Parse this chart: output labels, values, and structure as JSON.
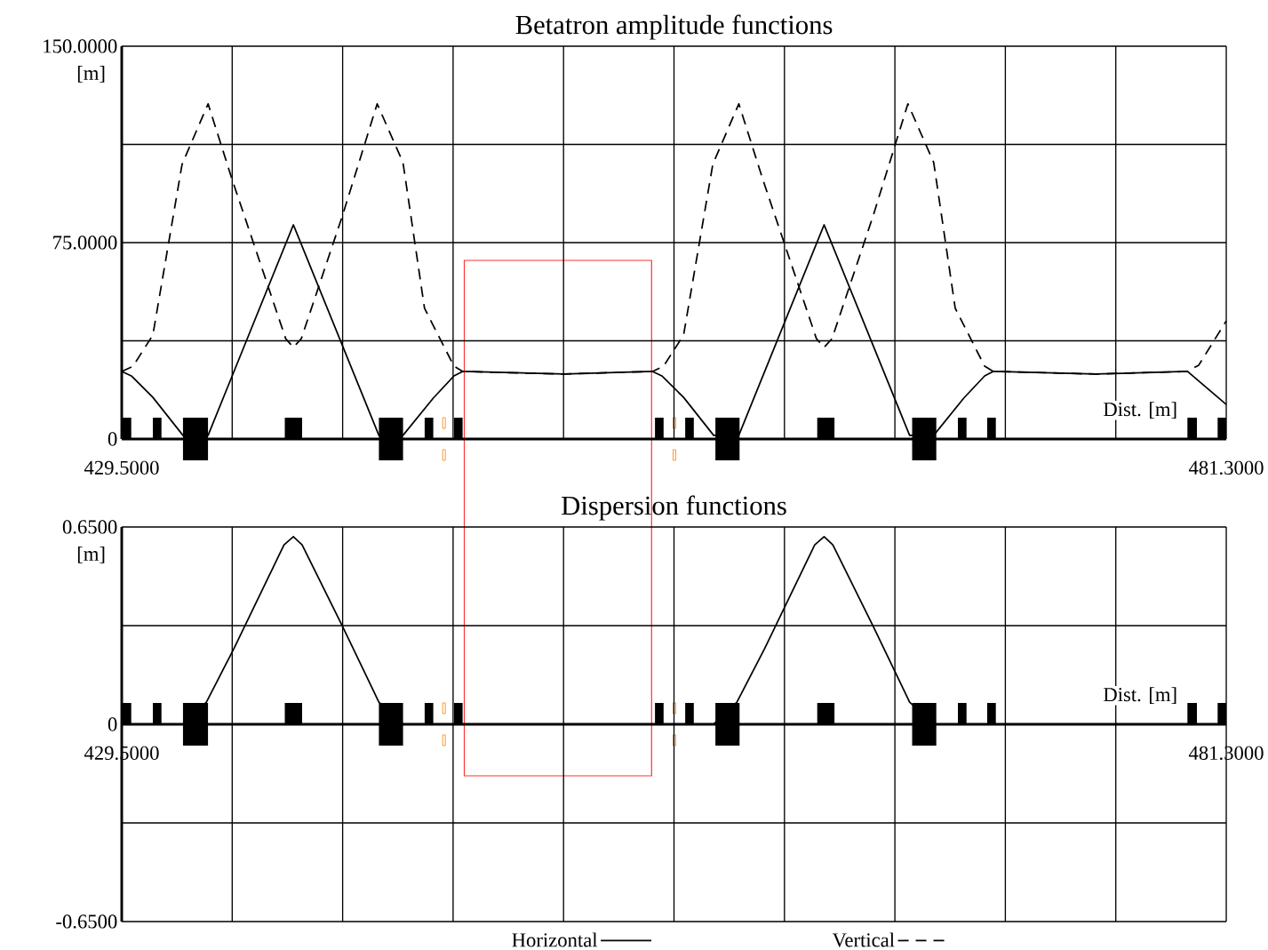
{
  "chart_data": [
    {
      "type": "line",
      "title": "Betatron amplitude functions",
      "xlabel": "Dist. [m]",
      "ylabel": "[m]",
      "xlim": [
        429.5,
        481.3
      ],
      "ylim": [
        0,
        150
      ],
      "xticks": [
        {
          "value": 429.5,
          "label": "429.5000"
        },
        {
          "value": 434.68,
          "label": null
        },
        {
          "value": 439.86,
          "label": null
        },
        {
          "value": 445.04,
          "label": null
        },
        {
          "value": 450.22,
          "label": null
        },
        {
          "value": 455.4,
          "label": null
        },
        {
          "value": 460.58,
          "label": null
        },
        {
          "value": 465.76,
          "label": null
        },
        {
          "value": 470.94,
          "label": null
        },
        {
          "value": 476.12,
          "label": null
        },
        {
          "value": 481.3,
          "label": "481.3000"
        }
      ],
      "yticks": [
        0,
        {
          "value": 37.5,
          "label": null
        },
        {
          "value": 75,
          "label": "75.0000"
        },
        {
          "value": 112.5,
          "label": null
        },
        {
          "value": 150,
          "label": "150.0000"
        }
      ],
      "grid": true,
      "legend": "bottom",
      "series": [
        {
          "name": "Horizontal",
          "color": "#000000",
          "line_style": "solid",
          "x": [
            429.5,
            429.95,
            430.96,
            432.37,
            433.55,
            437.55,
            441.56,
            442.69,
            444.11,
            445.08,
            445.49,
            450.26,
            454.39,
            454.83,
            455.85,
            457.26,
            458.44,
            462.44,
            466.45,
            467.58,
            468.99,
            469.97,
            470.37,
            475.15,
            479.48,
            481.3
          ],
          "values": [
            25.8,
            24.1,
            15.9,
            1.4,
            1.4,
            81.8,
            1.4,
            1.4,
            15.6,
            24.1,
            25.8,
            24.8,
            25.8,
            24.1,
            15.9,
            1.4,
            1.4,
            81.8,
            1.4,
            1.4,
            15.6,
            24.1,
            25.8,
            24.8,
            25.8,
            13.2
          ]
        },
        {
          "name": "Vertical",
          "color": "#000000",
          "line_style": "dashed",
          "x": [
            429.5,
            430.03,
            430.96,
            432.33,
            433.55,
            434.68,
            437.19,
            437.55,
            437.92,
            439.86,
            441.48,
            442.69,
            443.7,
            445.08,
            445.49,
            450.26,
            454.39,
            454.91,
            455.85,
            457.22,
            458.44,
            459.57,
            462.08,
            462.44,
            462.81,
            464.75,
            466.37,
            467.58,
            468.59,
            469.97,
            470.37,
            475.15,
            479.48,
            480.01,
            481.3
          ],
          "values": [
            25.8,
            27.8,
            39.7,
            104.9,
            128.0,
            99.0,
            38.3,
            35.0,
            38.3,
            85.5,
            128.0,
            105.6,
            49.9,
            27.8,
            25.8,
            24.8,
            25.8,
            27.8,
            39.7,
            104.9,
            128.0,
            99.0,
            38.3,
            35.0,
            38.3,
            85.5,
            128.0,
            105.6,
            49.9,
            27.8,
            25.8,
            24.8,
            25.8,
            28.2,
            45.1
          ]
        }
      ]
    },
    {
      "type": "line",
      "title": "Dispersion functions",
      "xlabel": "Dist. [m]",
      "ylabel": "[m]",
      "xlim": [
        429.5,
        481.3
      ],
      "ylim": [
        -0.65,
        0.65
      ],
      "xticks": [
        {
          "value": 429.5,
          "label": "429.5000"
        },
        {
          "value": 434.68,
          "label": null
        },
        {
          "value": 439.86,
          "label": null
        },
        {
          "value": 445.04,
          "label": null
        },
        {
          "value": 450.22,
          "label": null
        },
        {
          "value": 455.4,
          "label": null
        },
        {
          "value": 460.58,
          "label": null
        },
        {
          "value": 465.76,
          "label": null
        },
        {
          "value": 470.94,
          "label": null
        },
        {
          "value": 476.12,
          "label": null
        },
        {
          "value": 481.3,
          "label": "481.3000"
        }
      ],
      "yticks": [
        {
          "value": -0.65,
          "label": "-0.6500"
        },
        {
          "value": -0.325,
          "label": null
        },
        0,
        {
          "value": 0.325,
          "label": null
        },
        {
          "value": 0.65,
          "label": "0.6500"
        }
      ],
      "grid": true,
      "series": [
        {
          "color": "#000000",
          "line_style": "solid",
          "x": [
            429.5,
            432.37,
            433.47,
            434.76,
            437.11,
            437.55,
            437.96,
            439.86,
            441.56,
            442.69,
            454.39,
            457.26,
            458.35,
            459.65,
            462.0,
            462.44,
            462.85,
            464.75,
            466.45,
            467.58,
            481.3
          ],
          "values": [
            0,
            0,
            0.073,
            0.249,
            0.591,
            0.618,
            0.591,
            0.322,
            0.073,
            0,
            0,
            0,
            0.073,
            0.249,
            0.591,
            0.618,
            0.591,
            0.322,
            0.073,
            0,
            0
          ]
        }
      ]
    }
  ]
}
